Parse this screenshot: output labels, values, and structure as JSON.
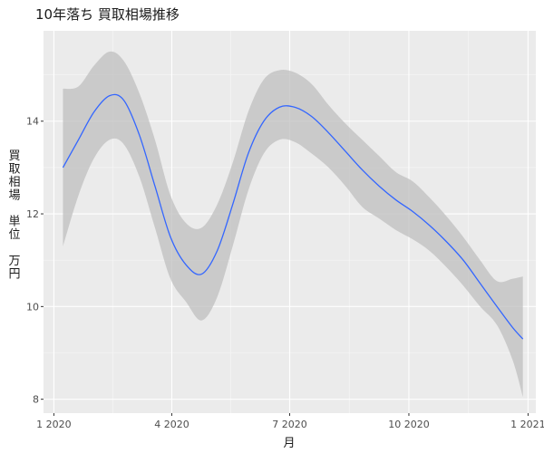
{
  "chart_data": {
    "type": "line",
    "title": "10年落ち 買取相場推移",
    "xlabel": "月",
    "ylabel_lines": [
      "買",
      "取",
      "相",
      "場",
      "",
      "単",
      "位",
      "",
      "万",
      "円"
    ],
    "x_ticks": [
      {
        "value": "2020-01-01",
        "label": "1 2020"
      },
      {
        "value": "2020-04-01",
        "label": "4 2020"
      },
      {
        "value": "2020-07-01",
        "label": "7 2020"
      },
      {
        "value": "2020-10-01",
        "label": "10 2020"
      },
      {
        "value": "2021-01-01",
        "label": "1 2021"
      }
    ],
    "y_ticks": [
      8,
      10,
      12,
      14
    ],
    "xlim": [
      "2019-12-24",
      "2021-01-07"
    ],
    "ylim": [
      7.7,
      15.95
    ],
    "grid": true,
    "legend": "none",
    "series": [
      {
        "color": "#3366ff",
        "band_color": "#bfbfbf",
        "points": [
          {
            "x": "2020-01-08",
            "y": 13.0,
            "lo": 11.3,
            "hi": 14.7
          },
          {
            "x": "2020-01-20",
            "y": 13.6,
            "lo": 12.4,
            "hi": 14.75
          },
          {
            "x": "2020-02-01",
            "y": 14.2,
            "lo": 13.2,
            "hi": 15.2
          },
          {
            "x": "2020-02-13",
            "y": 14.55,
            "lo": 13.6,
            "hi": 15.5
          },
          {
            "x": "2020-02-24",
            "y": 14.45,
            "lo": 13.5,
            "hi": 15.3
          },
          {
            "x": "2020-03-07",
            "y": 13.7,
            "lo": 12.8,
            "hi": 14.6
          },
          {
            "x": "2020-03-19",
            "y": 12.6,
            "lo": 11.7,
            "hi": 13.6
          },
          {
            "x": "2020-03-31",
            "y": 11.5,
            "lo": 10.6,
            "hi": 12.4
          },
          {
            "x": "2020-04-12",
            "y": 10.9,
            "lo": 10.1,
            "hi": 11.8
          },
          {
            "x": "2020-04-24",
            "y": 10.7,
            "lo": 9.7,
            "hi": 11.7
          },
          {
            "x": "2020-05-06",
            "y": 11.2,
            "lo": 10.2,
            "hi": 12.2
          },
          {
            "x": "2020-05-18",
            "y": 12.2,
            "lo": 11.3,
            "hi": 13.1
          },
          {
            "x": "2020-05-30",
            "y": 13.3,
            "lo": 12.5,
            "hi": 14.2
          },
          {
            "x": "2020-06-11",
            "y": 14.0,
            "lo": 13.3,
            "hi": 14.9
          },
          {
            "x": "2020-06-23",
            "y": 14.3,
            "lo": 13.6,
            "hi": 15.1
          },
          {
            "x": "2020-07-05",
            "y": 14.3,
            "lo": 13.55,
            "hi": 15.05
          },
          {
            "x": "2020-07-18",
            "y": 14.1,
            "lo": 13.3,
            "hi": 14.8
          },
          {
            "x": "2020-07-31",
            "y": 13.75,
            "lo": 13.0,
            "hi": 14.35
          },
          {
            "x": "2020-08-13",
            "y": 13.35,
            "lo": 12.6,
            "hi": 13.95
          },
          {
            "x": "2020-08-26",
            "y": 12.95,
            "lo": 12.15,
            "hi": 13.6
          },
          {
            "x": "2020-09-08",
            "y": 12.6,
            "lo": 11.9,
            "hi": 13.25
          },
          {
            "x": "2020-09-21",
            "y": 12.3,
            "lo": 11.65,
            "hi": 12.9
          },
          {
            "x": "2020-10-04",
            "y": 12.05,
            "lo": 11.45,
            "hi": 12.7
          },
          {
            "x": "2020-10-17",
            "y": 11.75,
            "lo": 11.2,
            "hi": 12.35
          },
          {
            "x": "2020-10-30",
            "y": 11.4,
            "lo": 10.85,
            "hi": 11.95
          },
          {
            "x": "2020-11-12",
            "y": 11.0,
            "lo": 10.45,
            "hi": 11.5
          },
          {
            "x": "2020-11-25",
            "y": 10.5,
            "lo": 10.0,
            "hi": 11.0
          },
          {
            "x": "2020-12-08",
            "y": 10.0,
            "lo": 9.6,
            "hi": 10.55
          },
          {
            "x": "2020-12-20",
            "y": 9.55,
            "lo": 8.85,
            "hi": 10.6
          },
          {
            "x": "2020-12-28",
            "y": 9.3,
            "lo": 8.05,
            "hi": 10.65
          }
        ]
      }
    ]
  }
}
